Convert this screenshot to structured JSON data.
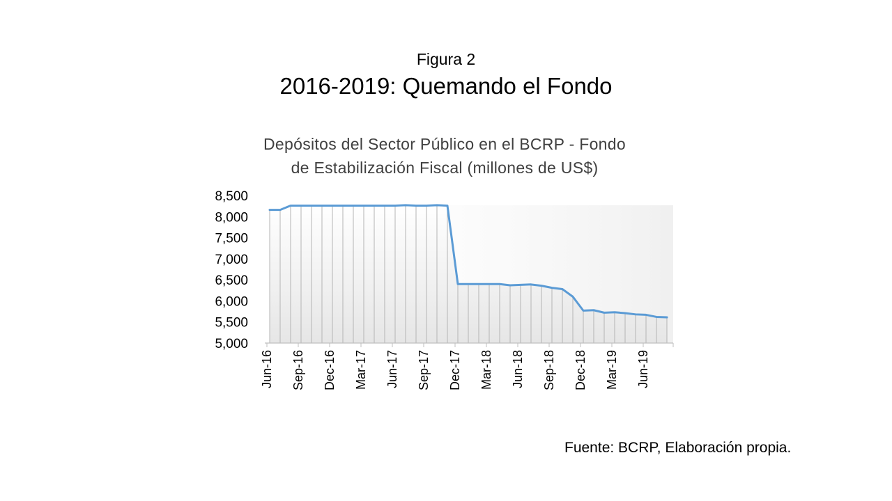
{
  "slide": {
    "figure_label": "Figura 2",
    "title": "2016-2019: Quemando el Fondo",
    "source": "Fuente: BCRP, Elaboración propia."
  },
  "chart_data": {
    "type": "area",
    "title_line1": "Depósitos  del  Sector  Público  en  el  BCRP  -  Fondo",
    "title_line2": "de  Estabilización  Fiscal  (millones  de  US$)",
    "xlabel": "",
    "ylabel": "",
    "ylim": [
      5000,
      8500
    ],
    "y_ticks": [
      "5,000",
      "5,500",
      "6,000",
      "6,500",
      "7,000",
      "7,500",
      "8,000",
      "8,500"
    ],
    "y_tick_values": [
      5000,
      5500,
      6000,
      6500,
      7000,
      7500,
      8000,
      8500
    ],
    "x_tick_labels": [
      "Jun-16",
      "Sep-16",
      "Dec-16",
      "Mar-17",
      "Jun-17",
      "Sep-17",
      "Dec-17",
      "Mar-18",
      "Jun-18",
      "Sep-18",
      "Dec-18",
      "Mar-19",
      "Jun-19"
    ],
    "categories": [
      "Jun-16",
      "Jul-16",
      "Aug-16",
      "Sep-16",
      "Oct-16",
      "Nov-16",
      "Dec-16",
      "Jan-17",
      "Feb-17",
      "Mar-17",
      "Apr-17",
      "May-17",
      "Jun-17",
      "Jul-17",
      "Aug-17",
      "Sep-17",
      "Oct-17",
      "Nov-17",
      "Dec-17",
      "Jan-18",
      "Feb-18",
      "Mar-18",
      "Apr-18",
      "May-18",
      "Jun-18",
      "Jul-18",
      "Aug-18",
      "Sep-18",
      "Oct-18",
      "Nov-18",
      "Dec-18",
      "Jan-19",
      "Feb-19",
      "Mar-19",
      "Apr-19",
      "May-19",
      "Jun-19",
      "Jul-19",
      "Aug-19"
    ],
    "series": [
      {
        "values": [
          8160,
          8160,
          8260,
          8260,
          8260,
          8260,
          8260,
          8260,
          8260,
          8260,
          8260,
          8260,
          8260,
          8270,
          8260,
          8260,
          8270,
          8260,
          6400,
          6400,
          6400,
          6400,
          6400,
          6370,
          6380,
          6390,
          6360,
          6310,
          6280,
          6100,
          5770,
          5780,
          5720,
          5730,
          5710,
          5680,
          5670,
          5620,
          5610
        ],
        "color": "#5B9BD5"
      }
    ],
    "grid": "vertical drop lines per point",
    "fill": "light gray gradient under line"
  }
}
